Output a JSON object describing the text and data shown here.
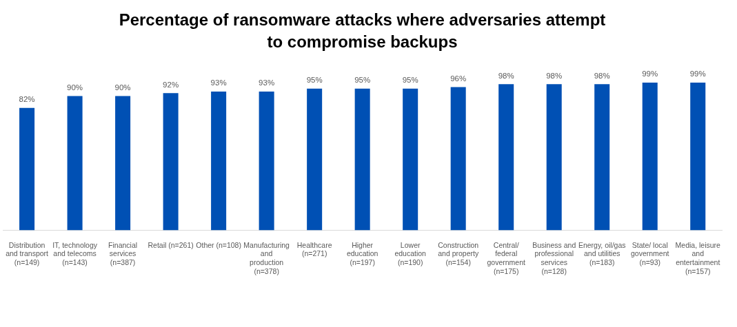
{
  "chart_data": {
    "type": "bar",
    "title": "Percentage of ransomware attacks where adversaries attempt to compromise backups",
    "categories": [
      "Distribution and transport (n=149)",
      "IT, technology and telecoms (n=143)",
      "Financial services (n=387)",
      "Retail (n=261)",
      "Other (n=108)",
      "Manufacturing and production (n=378)",
      "Healthcare (n=271)",
      "Higher education (n=197)",
      "Lower education (n=190)",
      "Construction and property (n=154)",
      "Central/ federal government (n=175)",
      "Business and professional services (n=128)",
      "Energy, oil/gas and utilities (n=183)",
      "State/ local government (n=93)",
      "Media, leisure and entertainment (n=157)"
    ],
    "values": [
      82,
      90,
      90,
      92,
      93,
      93,
      95,
      95,
      95,
      96,
      98,
      98,
      98,
      99,
      99
    ],
    "value_labels": [
      "82%",
      "90%",
      "90%",
      "92%",
      "93%",
      "93%",
      "95%",
      "95%",
      "95%",
      "96%",
      "98%",
      "98%",
      "98%",
      "99%",
      "99%"
    ],
    "color": "#0050b4",
    "ylim": [
      0,
      100
    ],
    "tick_labels": "x"
  }
}
